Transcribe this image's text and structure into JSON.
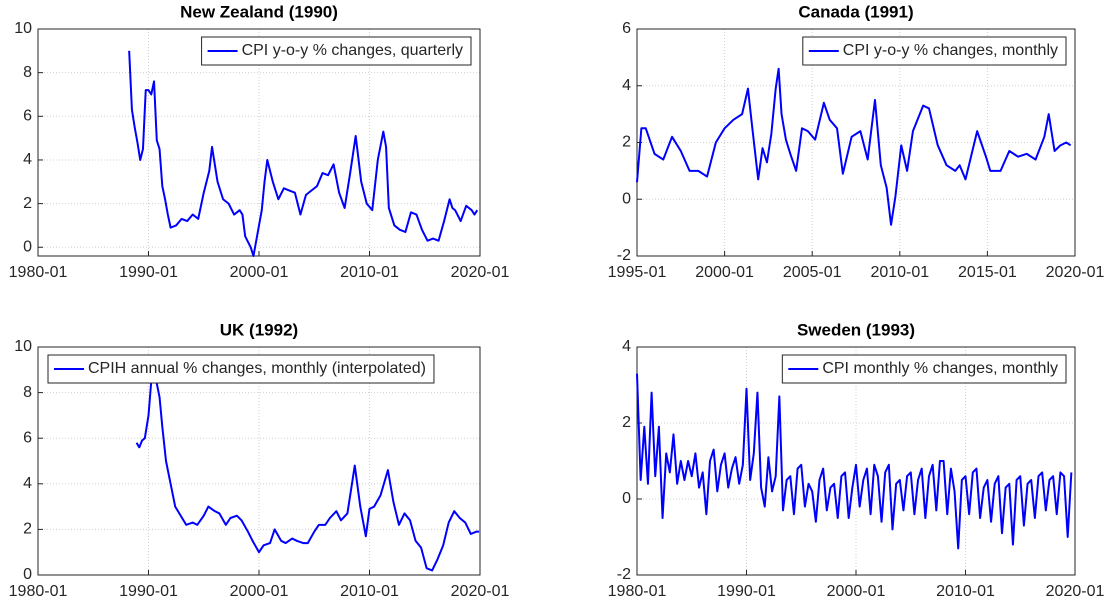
{
  "chart_data": [
    {
      "type": "line",
      "title": "New Zealand (1990)",
      "legend": "upper right",
      "grid": true,
      "xlim": [
        1980,
        2020
      ],
      "ylim": [
        -0.4,
        10
      ],
      "xticks": [
        {
          "value": 1980,
          "label": "1980-01"
        },
        {
          "value": 1990,
          "label": "1990-01"
        },
        {
          "value": 2000,
          "label": "2000-01"
        },
        {
          "value": 2010,
          "label": "2010-01"
        },
        {
          "value": 2020,
          "label": "2020-01"
        }
      ],
      "yticks": [
        0,
        2,
        4,
        6,
        8,
        10
      ],
      "x": [
        "1988-04",
        "1988-07",
        "1988-10",
        "1989-01",
        "1989-04",
        "1989-07",
        "1989-10",
        "1990-01",
        "1990-04",
        "1990-07",
        "1990-10",
        "1991-01",
        "1991-04",
        "1991-07",
        "1991-10",
        "1992-01",
        "1992-07",
        "1993-01",
        "1993-07",
        "1994-01",
        "1994-07",
        "1995-01",
        "1995-07",
        "1995-10",
        "1996-04",
        "1996-10",
        "1997-04",
        "1997-10",
        "1998-04",
        "1998-07",
        "1998-10",
        "1999-04",
        "1999-07",
        "1999-10",
        "2000-04",
        "2000-07",
        "2000-10",
        "2001-04",
        "2001-10",
        "2002-04",
        "2002-10",
        "2003-04",
        "2003-10",
        "2004-04",
        "2004-10",
        "2005-04",
        "2005-10",
        "2006-04",
        "2006-10",
        "2007-04",
        "2007-10",
        "2008-04",
        "2008-10",
        "2009-04",
        "2009-10",
        "2010-04",
        "2010-10",
        "2011-04",
        "2011-07",
        "2011-10",
        "2012-04",
        "2012-10",
        "2013-04",
        "2013-10",
        "2014-04",
        "2014-10",
        "2015-04",
        "2015-10",
        "2016-04",
        "2016-10",
        "2017-04",
        "2017-07",
        "2017-10",
        "2018-04",
        "2018-10",
        "2019-04",
        "2019-07",
        "2019-10"
      ],
      "series": [
        {
          "name": "CPI y-o-y % changes, quarterly",
          "color": "#0000ff",
          "values": [
            9.0,
            6.3,
            5.5,
            4.8,
            4.0,
            4.5,
            7.2,
            7.2,
            7.0,
            7.6,
            4.9,
            4.5,
            2.8,
            2.2,
            1.5,
            0.9,
            1.0,
            1.3,
            1.2,
            1.5,
            1.3,
            2.5,
            3.5,
            4.6,
            3.0,
            2.2,
            2.0,
            1.5,
            1.7,
            1.5,
            0.5,
            0.0,
            -0.4,
            0.3,
            1.7,
            3.0,
            4.0,
            3.0,
            2.2,
            2.7,
            2.6,
            2.5,
            1.5,
            2.4,
            2.6,
            2.8,
            3.4,
            3.3,
            3.8,
            2.5,
            1.8,
            3.4,
            5.1,
            3.0,
            2.0,
            1.7,
            4.0,
            5.3,
            4.6,
            1.8,
            1.0,
            0.8,
            0.7,
            1.6,
            1.5,
            0.8,
            0.3,
            0.4,
            0.3,
            1.2,
            2.2,
            1.8,
            1.7,
            1.2,
            1.9,
            1.7,
            1.5,
            1.7
          ]
        }
      ]
    },
    {
      "type": "line",
      "title": "Canada (1991)",
      "legend": "upper right",
      "grid": true,
      "xlim": [
        1995,
        2020
      ],
      "ylim": [
        -2,
        6
      ],
      "xticks": [
        {
          "value": 1995,
          "label": "1995-01"
        },
        {
          "value": 2000,
          "label": "2000-01"
        },
        {
          "value": 2005,
          "label": "2005-01"
        },
        {
          "value": 2010,
          "label": "2010-01"
        },
        {
          "value": 2015,
          "label": "2015-01"
        },
        {
          "value": 2020,
          "label": "2020-01"
        }
      ],
      "yticks": [
        -2,
        0,
        2,
        4,
        6
      ],
      "x": [
        "1995-01",
        "1995-04",
        "1995-07",
        "1996-01",
        "1996-07",
        "1997-01",
        "1997-07",
        "1998-01",
        "1998-07",
        "1999-01",
        "1999-07",
        "2000-01",
        "2000-07",
        "2001-01",
        "2001-05",
        "2001-08",
        "2001-12",
        "2002-03",
        "2002-06",
        "2002-09",
        "2002-12",
        "2003-02",
        "2003-04",
        "2003-07",
        "2003-10",
        "2004-02",
        "2004-06",
        "2004-10",
        "2005-03",
        "2005-09",
        "2006-01",
        "2006-06",
        "2006-10",
        "2007-04",
        "2007-10",
        "2008-03",
        "2008-08",
        "2008-12",
        "2009-04",
        "2009-07",
        "2009-10",
        "2010-02",
        "2010-06",
        "2010-10",
        "2011-05",
        "2011-09",
        "2012-03",
        "2012-09",
        "2013-03",
        "2013-06",
        "2013-10",
        "2014-06",
        "2014-12",
        "2015-03",
        "2015-10",
        "2016-04",
        "2016-10",
        "2017-04",
        "2017-10",
        "2018-04",
        "2018-07",
        "2018-11",
        "2019-03",
        "2019-07",
        "2019-10"
      ],
      "series": [
        {
          "name": "CPI y-o-y % changes, monthly",
          "color": "#0000ff",
          "values": [
            0.6,
            2.5,
            2.5,
            1.6,
            1.4,
            2.2,
            1.7,
            1.0,
            1.0,
            0.8,
            2.0,
            2.5,
            2.8,
            3.0,
            3.9,
            2.5,
            0.7,
            1.8,
            1.3,
            2.3,
            3.9,
            4.6,
            3.0,
            2.1,
            1.6,
            1.0,
            2.5,
            2.4,
            2.1,
            3.4,
            2.8,
            2.5,
            0.9,
            2.2,
            2.4,
            1.4,
            3.5,
            1.2,
            0.4,
            -0.9,
            0.1,
            1.9,
            1.0,
            2.4,
            3.3,
            3.2,
            1.9,
            1.2,
            1.0,
            1.2,
            0.7,
            2.4,
            1.5,
            1.0,
            1.0,
            1.7,
            1.5,
            1.6,
            1.4,
            2.2,
            3.0,
            1.7,
            1.9,
            2.0,
            1.9
          ]
        }
      ]
    },
    {
      "type": "line",
      "title": "UK (1992)",
      "legend": "upper left",
      "grid": true,
      "xlim": [
        1980,
        2020
      ],
      "ylim": [
        0,
        10
      ],
      "xticks": [
        {
          "value": 1980,
          "label": "1980-01"
        },
        {
          "value": 1990,
          "label": "1990-01"
        },
        {
          "value": 2000,
          "label": "2000-01"
        },
        {
          "value": 2010,
          "label": "2010-01"
        },
        {
          "value": 2020,
          "label": "2020-01"
        }
      ],
      "yticks": [
        0,
        2,
        4,
        6,
        8,
        10
      ],
      "x": [
        "1988-12",
        "1989-03",
        "1989-06",
        "1989-09",
        "1990-01",
        "1990-04",
        "1990-09",
        "1991-01",
        "1991-04",
        "1991-08",
        "1992-01",
        "1992-06",
        "1992-12",
        "1993-06",
        "1994-01",
        "1994-06",
        "1995-01",
        "1995-06",
        "1996-01",
        "1996-06",
        "1997-01",
        "1997-06",
        "1998-01",
        "1998-06",
        "1999-01",
        "1999-06",
        "2000-01",
        "2000-06",
        "2001-01",
        "2001-06",
        "2002-01",
        "2002-06",
        "2003-01",
        "2003-06",
        "2004-01",
        "2004-06",
        "2005-01",
        "2005-06",
        "2006-01",
        "2006-06",
        "2007-01",
        "2007-06",
        "2008-01",
        "2008-09",
        "2009-03",
        "2009-09",
        "2010-01",
        "2010-06",
        "2011-01",
        "2011-09",
        "2012-03",
        "2012-09",
        "2013-03",
        "2013-09",
        "2014-03",
        "2014-09",
        "2015-03",
        "2015-09",
        "2016-03",
        "2016-09",
        "2017-03",
        "2017-09",
        "2018-03",
        "2018-09",
        "2019-03",
        "2019-09",
        "2019-12"
      ],
      "series": [
        {
          "name": "CPIH annual % changes, monthly (interpolated)",
          "color": "#0000ff",
          "values": [
            5.8,
            5.6,
            5.9,
            6.0,
            7.0,
            8.5,
            8.6,
            7.8,
            6.5,
            5.0,
            4.0,
            3.0,
            2.6,
            2.2,
            2.3,
            2.2,
            2.6,
            3.0,
            2.8,
            2.7,
            2.2,
            2.5,
            2.6,
            2.4,
            1.9,
            1.5,
            1.0,
            1.3,
            1.4,
            2.0,
            1.5,
            1.4,
            1.6,
            1.5,
            1.4,
            1.4,
            1.9,
            2.2,
            2.2,
            2.5,
            2.8,
            2.4,
            2.7,
            4.8,
            3.0,
            1.7,
            2.9,
            3.0,
            3.5,
            4.6,
            3.2,
            2.2,
            2.7,
            2.4,
            1.5,
            1.2,
            0.3,
            0.2,
            0.7,
            1.3,
            2.3,
            2.8,
            2.5,
            2.3,
            1.8,
            1.9,
            1.9
          ]
        }
      ]
    },
    {
      "type": "line",
      "title": "Sweden (1993)",
      "legend": "upper right",
      "grid": true,
      "xlim": [
        1980,
        2020
      ],
      "ylim": [
        -2,
        4
      ],
      "xticks": [
        {
          "value": 1980,
          "label": "1980-01"
        },
        {
          "value": 1990,
          "label": "1990-01"
        },
        {
          "value": 2000,
          "label": "2000-01"
        },
        {
          "value": 2010,
          "label": "2010-01"
        },
        {
          "value": 2020,
          "label": "2020-01"
        }
      ],
      "yticks": [
        -2,
        0,
        2,
        4
      ],
      "x": [
        "1980-01",
        "1980-05",
        "1980-09",
        "1981-01",
        "1981-05",
        "1981-09",
        "1982-01",
        "1982-05",
        "1982-09",
        "1983-01",
        "1983-05",
        "1983-09",
        "1984-01",
        "1984-05",
        "1984-09",
        "1985-01",
        "1985-05",
        "1985-09",
        "1986-01",
        "1986-05",
        "1986-09",
        "1987-01",
        "1987-05",
        "1987-09",
        "1988-01",
        "1988-05",
        "1988-09",
        "1989-01",
        "1989-05",
        "1989-09",
        "1990-01",
        "1990-05",
        "1990-09",
        "1991-01",
        "1991-05",
        "1991-09",
        "1992-01",
        "1992-05",
        "1992-09",
        "1993-01",
        "1993-05",
        "1993-09",
        "1994-01",
        "1994-05",
        "1994-09",
        "1995-01",
        "1995-05",
        "1995-09",
        "1996-01",
        "1996-05",
        "1996-09",
        "1997-01",
        "1997-05",
        "1997-09",
        "1998-01",
        "1998-05",
        "1998-09",
        "1999-01",
        "1999-05",
        "1999-09",
        "2000-01",
        "2000-05",
        "2000-09",
        "2001-01",
        "2001-05",
        "2001-09",
        "2002-01",
        "2002-05",
        "2002-09",
        "2003-01",
        "2003-05",
        "2003-09",
        "2004-01",
        "2004-05",
        "2004-09",
        "2005-01",
        "2005-05",
        "2005-09",
        "2006-01",
        "2006-05",
        "2006-09",
        "2007-01",
        "2007-05",
        "2007-09",
        "2008-01",
        "2008-05",
        "2008-09",
        "2009-01",
        "2009-05",
        "2009-09",
        "2010-01",
        "2010-05",
        "2010-09",
        "2011-01",
        "2011-05",
        "2011-09",
        "2012-01",
        "2012-05",
        "2012-09",
        "2013-01",
        "2013-05",
        "2013-09",
        "2014-01",
        "2014-05",
        "2014-09",
        "2015-01",
        "2015-05",
        "2015-09",
        "2016-01",
        "2016-05",
        "2016-09",
        "2017-01",
        "2017-05",
        "2017-09",
        "2018-01",
        "2018-05",
        "2018-09",
        "2019-01",
        "2019-05",
        "2019-09"
      ],
      "series": [
        {
          "name": "CPI monthly % changes, monthly",
          "color": "#0000ff",
          "values": [
            3.3,
            0.5,
            1.9,
            0.4,
            2.8,
            0.6,
            1.9,
            -0.5,
            1.2,
            0.7,
            1.7,
            0.4,
            1.0,
            0.5,
            1.0,
            0.6,
            1.2,
            0.3,
            0.7,
            -0.4,
            1.0,
            1.3,
            0.2,
            0.9,
            1.2,
            0.3,
            0.8,
            1.1,
            0.4,
            0.9,
            2.9,
            0.5,
            1.2,
            2.8,
            0.3,
            -0.2,
            1.1,
            0.2,
            0.6,
            2.7,
            -0.3,
            0.5,
            0.6,
            -0.4,
            0.8,
            0.9,
            -0.2,
            0.4,
            0.2,
            -0.6,
            0.5,
            0.8,
            -0.3,
            0.3,
            0.4,
            -0.5,
            0.6,
            0.7,
            -0.5,
            0.3,
            0.9,
            -0.2,
            0.5,
            0.8,
            -0.4,
            0.9,
            0.6,
            -0.6,
            0.7,
            0.9,
            -0.8,
            0.4,
            0.5,
            -0.3,
            0.6,
            0.7,
            -0.4,
            0.5,
            0.8,
            -0.5,
            0.6,
            0.9,
            -0.3,
            1.0,
            1.0,
            -0.4,
            0.8,
            0.2,
            -1.3,
            0.5,
            0.6,
            -0.4,
            0.7,
            0.8,
            -0.5,
            0.3,
            0.5,
            -0.6,
            0.4,
            0.6,
            -0.9,
            0.3,
            0.4,
            -1.2,
            0.5,
            0.6,
            -0.7,
            0.4,
            0.5,
            -0.5,
            0.6,
            0.7,
            -0.3,
            0.5,
            0.6,
            -0.4,
            0.7,
            0.6,
            -1.0,
            0.7
          ]
        }
      ]
    }
  ]
}
